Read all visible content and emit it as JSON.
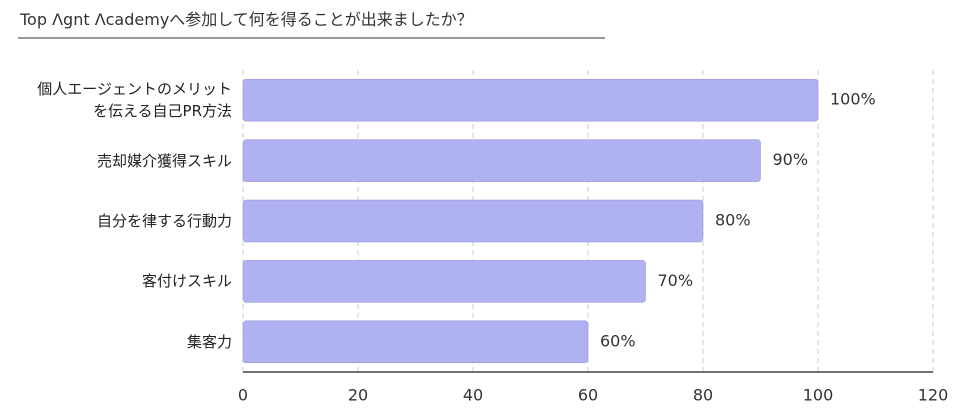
{
  "chart_data": {
    "type": "bar",
    "orientation": "horizontal",
    "title": "Top Λgnt Λcademyへ参加して何を得ることが出来ましたか？",
    "categories": [
      "個人エージェントのメリット\nを伝える自己PR方法",
      "売却媒介獲得スキル",
      "自分を律する行動力",
      "客付けスキル",
      "集客力"
    ],
    "values": [
      100,
      90,
      80,
      70,
      60
    ],
    "value_labels": [
      "100%",
      "90%",
      "80%",
      "70%",
      "60%"
    ],
    "color": "#b0b1f1",
    "xlim": [
      0,
      120
    ],
    "xticks": [
      0,
      20,
      40,
      60,
      80,
      100,
      120
    ],
    "grid": true
  }
}
